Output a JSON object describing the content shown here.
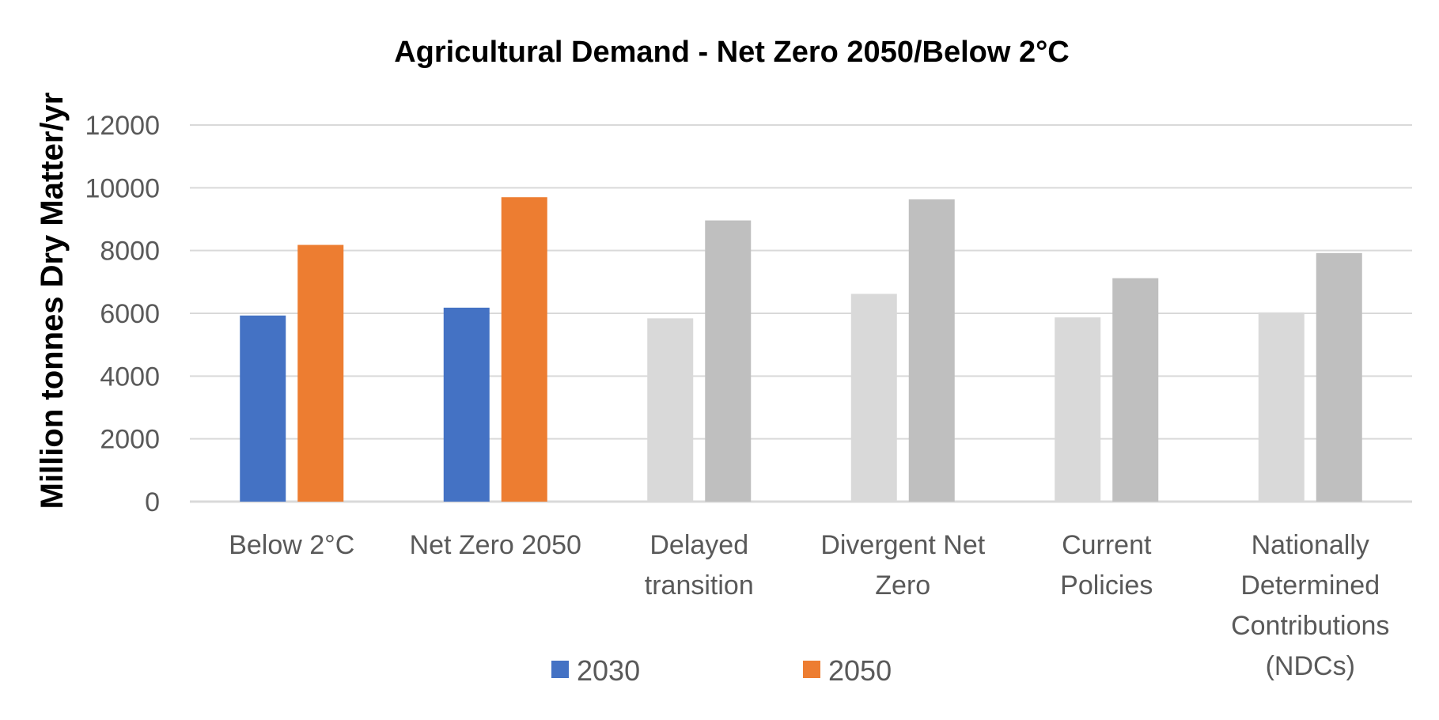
{
  "chart_data": {
    "type": "bar",
    "title": "Agricultural Demand - Net Zero 2050/Below 2°C",
    "xlabel": "",
    "ylabel": "Million tonnes Dry Matter/yr",
    "ylim": [
      0,
      12000
    ],
    "yticks": [
      0,
      2000,
      4000,
      6000,
      8000,
      10000,
      12000
    ],
    "grid": true,
    "legend_position": "bottom",
    "categories": [
      [
        "Below 2°C"
      ],
      [
        "Net Zero 2050"
      ],
      [
        "Delayed",
        "transition"
      ],
      [
        "Divergent Net",
        "Zero"
      ],
      [
        "Current",
        "Policies"
      ],
      [
        "Nationally",
        "Determined",
        "Contributions",
        "(NDCs)"
      ]
    ],
    "series": [
      {
        "name": "2030",
        "values": [
          5930,
          6180,
          5840,
          6620,
          5870,
          6030
        ],
        "legend_color": "#4472C4",
        "colors": [
          "#4472C4",
          "#4472C4",
          "#D9D9D9",
          "#D9D9D9",
          "#D9D9D9",
          "#D9D9D9"
        ]
      },
      {
        "name": "2050",
        "values": [
          8180,
          9700,
          8960,
          9630,
          7120,
          7920
        ],
        "legend_color": "#ED7D31",
        "colors": [
          "#ED7D31",
          "#ED7D31",
          "#BFBFBF",
          "#BFBFBF",
          "#BFBFBF",
          "#BFBFBF"
        ]
      }
    ],
    "colors": {
      "gridline": "#D9D9D9",
      "axis_text": "#595959",
      "title_text": "#000000"
    }
  }
}
